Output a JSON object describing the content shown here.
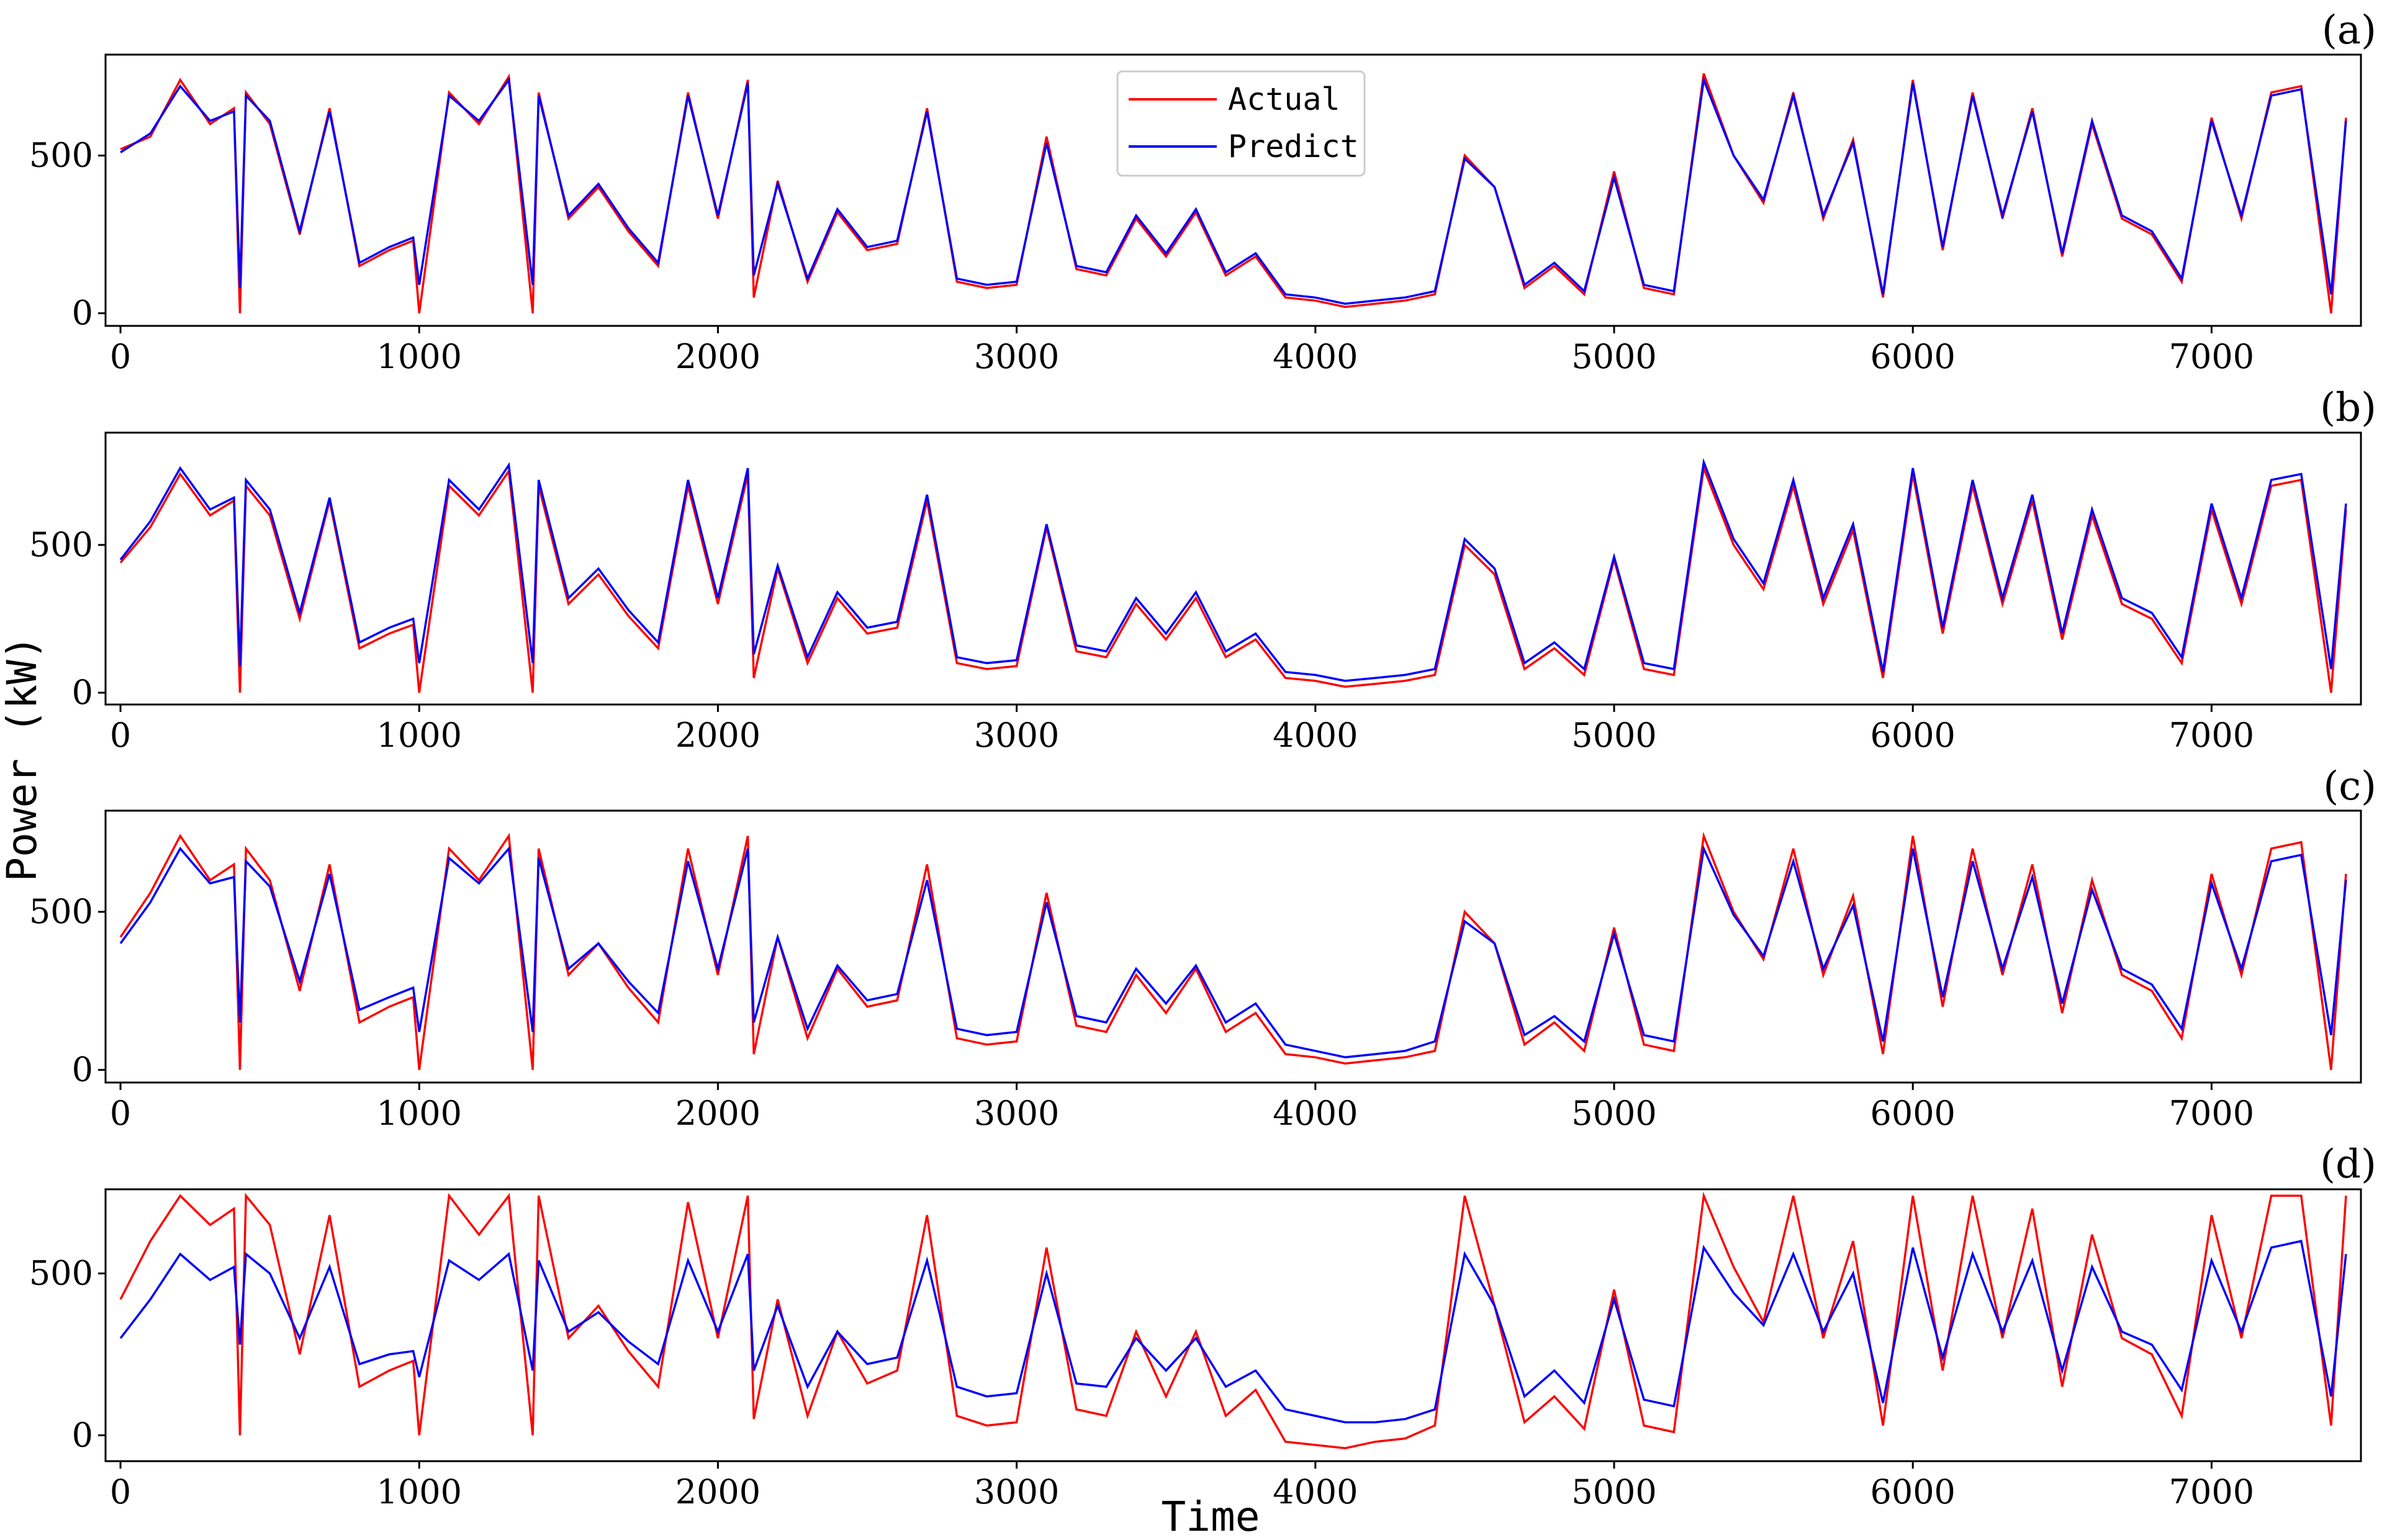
{
  "figure": {
    "ylabel": "Power (kW)",
    "xlabel": "Time",
    "legend": {
      "placement": "top-center",
      "entries": [
        "Actual",
        "Predict"
      ]
    }
  },
  "colors": {
    "actual": "#ff0000",
    "predict": "#0000ff",
    "axis": "#000000",
    "background": "#ffffff"
  },
  "chart_data": [
    {
      "type": "line",
      "panel_label": "(a)",
      "x": [
        0,
        100,
        200,
        300,
        380,
        400,
        420,
        500,
        600,
        700,
        800,
        900,
        980,
        1000,
        1100,
        1200,
        1300,
        1380,
        1400,
        1500,
        1600,
        1700,
        1800,
        1900,
        2000,
        2100,
        2120,
        2200,
        2300,
        2400,
        2500,
        2600,
        2700,
        2800,
        2900,
        3000,
        3100,
        3200,
        3300,
        3400,
        3500,
        3600,
        3700,
        3800,
        3900,
        4000,
        4100,
        4200,
        4300,
        4400,
        4500,
        4600,
        4700,
        4800,
        4900,
        5000,
        5100,
        5200,
        5300,
        5400,
        5500,
        5600,
        5700,
        5800,
        5900,
        6000,
        6100,
        6200,
        6300,
        6400,
        6500,
        6600,
        6700,
        6800,
        6900,
        7000,
        7100,
        7200,
        7300,
        7400,
        7450
      ],
      "xlim": [
        -50,
        7500
      ],
      "ylim": [
        -40,
        820
      ],
      "xticks": [
        0,
        1000,
        2000,
        3000,
        4000,
        5000,
        6000,
        7000
      ],
      "yticks": [
        0,
        500
      ],
      "series": [
        {
          "name": "Actual",
          "values": [
            520,
            560,
            740,
            600,
            650,
            0,
            700,
            600,
            250,
            650,
            150,
            200,
            230,
            0,
            700,
            600,
            750,
            0,
            700,
            300,
            400,
            260,
            150,
            700,
            300,
            740,
            50,
            420,
            100,
            320,
            200,
            220,
            650,
            100,
            80,
            90,
            560,
            140,
            120,
            300,
            180,
            320,
            120,
            180,
            50,
            40,
            20,
            30,
            40,
            60,
            500,
            400,
            80,
            150,
            60,
            450,
            80,
            60,
            760,
            500,
            350,
            700,
            300,
            550,
            50,
            740,
            200,
            700,
            300,
            650,
            180,
            600,
            300,
            250,
            100,
            620,
            300,
            700,
            720,
            0,
            620
          ]
        },
        {
          "name": "Predict",
          "values": [
            510,
            570,
            720,
            610,
            640,
            80,
            690,
            610,
            260,
            640,
            160,
            210,
            240,
            90,
            690,
            610,
            740,
            90,
            690,
            310,
            410,
            270,
            160,
            690,
            310,
            730,
            120,
            410,
            110,
            330,
            210,
            230,
            640,
            110,
            90,
            100,
            540,
            150,
            130,
            310,
            190,
            330,
            130,
            190,
            60,
            50,
            30,
            40,
            50,
            70,
            490,
            400,
            90,
            160,
            70,
            430,
            90,
            70,
            740,
            500,
            360,
            690,
            310,
            540,
            60,
            730,
            210,
            690,
            310,
            640,
            190,
            610,
            310,
            260,
            110,
            610,
            310,
            690,
            710,
            60,
            610
          ]
        }
      ]
    },
    {
      "type": "line",
      "panel_label": "(b)",
      "x": [
        0,
        100,
        200,
        300,
        380,
        400,
        420,
        500,
        600,
        700,
        800,
        900,
        980,
        1000,
        1100,
        1200,
        1300,
        1380,
        1400,
        1500,
        1600,
        1700,
        1800,
        1900,
        2000,
        2100,
        2120,
        2200,
        2300,
        2400,
        2500,
        2600,
        2700,
        2800,
        2900,
        3000,
        3100,
        3200,
        3300,
        3400,
        3500,
        3600,
        3700,
        3800,
        3900,
        4000,
        4100,
        4200,
        4300,
        4400,
        4500,
        4600,
        4700,
        4800,
        4900,
        5000,
        5100,
        5200,
        5300,
        5400,
        5500,
        5600,
        5700,
        5800,
        5900,
        6000,
        6100,
        6200,
        6300,
        6400,
        6500,
        6600,
        6700,
        6800,
        6900,
        7000,
        7100,
        7200,
        7300,
        7400,
        7450
      ],
      "xlim": [
        -50,
        7500
      ],
      "ylim": [
        -40,
        880
      ],
      "xticks": [
        0,
        1000,
        2000,
        3000,
        4000,
        5000,
        6000,
        7000
      ],
      "yticks": [
        0,
        500
      ],
      "series": [
        {
          "name": "Actual",
          "values": [
            440,
            560,
            740,
            600,
            650,
            0,
            700,
            600,
            250,
            650,
            150,
            200,
            230,
            0,
            700,
            600,
            750,
            0,
            700,
            300,
            400,
            260,
            150,
            700,
            300,
            740,
            50,
            420,
            100,
            320,
            200,
            220,
            650,
            100,
            80,
            90,
            560,
            140,
            120,
            300,
            180,
            320,
            120,
            180,
            50,
            40,
            20,
            30,
            40,
            60,
            500,
            400,
            80,
            150,
            60,
            450,
            80,
            60,
            760,
            500,
            350,
            700,
            300,
            550,
            50,
            740,
            200,
            700,
            300,
            650,
            180,
            600,
            300,
            250,
            100,
            620,
            300,
            700,
            720,
            0,
            620
          ]
        },
        {
          "name": "Predict",
          "values": [
            450,
            580,
            760,
            620,
            660,
            90,
            720,
            620,
            270,
            660,
            170,
            220,
            250,
            100,
            720,
            620,
            770,
            100,
            720,
            320,
            420,
            280,
            170,
            720,
            320,
            760,
            130,
            430,
            120,
            340,
            220,
            240,
            670,
            120,
            100,
            110,
            570,
            160,
            140,
            320,
            200,
            340,
            140,
            200,
            70,
            60,
            40,
            50,
            60,
            80,
            520,
            420,
            100,
            170,
            80,
            460,
            100,
            80,
            780,
            520,
            370,
            720,
            320,
            570,
            70,
            760,
            220,
            720,
            320,
            670,
            200,
            620,
            320,
            270,
            120,
            640,
            320,
            720,
            740,
            80,
            640
          ]
        }
      ]
    },
    {
      "type": "line",
      "panel_label": "(c)",
      "x": [
        0,
        100,
        200,
        300,
        380,
        400,
        420,
        500,
        600,
        700,
        800,
        900,
        980,
        1000,
        1100,
        1200,
        1300,
        1380,
        1400,
        1500,
        1600,
        1700,
        1800,
        1900,
        2000,
        2100,
        2120,
        2200,
        2300,
        2400,
        2500,
        2600,
        2700,
        2800,
        2900,
        3000,
        3100,
        3200,
        3300,
        3400,
        3500,
        3600,
        3700,
        3800,
        3900,
        4000,
        4100,
        4200,
        4300,
        4400,
        4500,
        4600,
        4700,
        4800,
        4900,
        5000,
        5100,
        5200,
        5300,
        5400,
        5500,
        5600,
        5700,
        5800,
        5900,
        6000,
        6100,
        6200,
        6300,
        6400,
        6500,
        6600,
        6700,
        6800,
        6900,
        7000,
        7100,
        7200,
        7300,
        7400,
        7450
      ],
      "xlim": [
        -50,
        7500
      ],
      "ylim": [
        -40,
        820
      ],
      "xticks": [
        0,
        1000,
        2000,
        3000,
        4000,
        5000,
        6000,
        7000
      ],
      "yticks": [
        0,
        500
      ],
      "series": [
        {
          "name": "Actual",
          "values": [
            420,
            560,
            740,
            600,
            650,
            0,
            700,
            600,
            250,
            650,
            150,
            200,
            230,
            0,
            700,
            600,
            740,
            0,
            700,
            300,
            400,
            260,
            150,
            700,
            300,
            740,
            50,
            420,
            100,
            320,
            200,
            220,
            650,
            100,
            80,
            90,
            560,
            140,
            120,
            300,
            180,
            320,
            120,
            180,
            50,
            40,
            20,
            30,
            40,
            60,
            500,
            400,
            80,
            150,
            60,
            450,
            80,
            60,
            740,
            500,
            350,
            700,
            300,
            550,
            50,
            740,
            200,
            700,
            300,
            650,
            180,
            600,
            300,
            250,
            100,
            620,
            300,
            700,
            720,
            0,
            620
          ]
        },
        {
          "name": "Predict",
          "values": [
            400,
            530,
            700,
            590,
            610,
            150,
            660,
            580,
            280,
            620,
            190,
            230,
            260,
            120,
            670,
            590,
            700,
            120,
            670,
            320,
            400,
            280,
            180,
            660,
            320,
            700,
            150,
            420,
            130,
            330,
            220,
            240,
            600,
            130,
            110,
            120,
            530,
            170,
            150,
            320,
            210,
            330,
            150,
            210,
            80,
            60,
            40,
            50,
            60,
            90,
            470,
            400,
            110,
            170,
            90,
            430,
            110,
            90,
            700,
            490,
            360,
            660,
            320,
            520,
            90,
            700,
            230,
            660,
            320,
            610,
            210,
            570,
            320,
            270,
            130,
            590,
            320,
            660,
            680,
            110,
            600
          ]
        }
      ]
    },
    {
      "type": "line",
      "panel_label": "(d)",
      "x": [
        0,
        100,
        200,
        300,
        380,
        400,
        420,
        500,
        600,
        700,
        800,
        900,
        980,
        1000,
        1100,
        1200,
        1300,
        1380,
        1400,
        1500,
        1600,
        1700,
        1800,
        1900,
        2000,
        2100,
        2120,
        2200,
        2300,
        2400,
        2500,
        2600,
        2700,
        2800,
        2900,
        3000,
        3100,
        3200,
        3300,
        3400,
        3500,
        3600,
        3700,
        3800,
        3900,
        4000,
        4100,
        4200,
        4300,
        4400,
        4500,
        4600,
        4700,
        4800,
        4900,
        5000,
        5100,
        5200,
        5300,
        5400,
        5500,
        5600,
        5700,
        5800,
        5900,
        6000,
        6100,
        6200,
        6300,
        6400,
        6500,
        6600,
        6700,
        6800,
        6900,
        7000,
        7100,
        7200,
        7300,
        7400,
        7450
      ],
      "xlim": [
        -50,
        7500
      ],
      "ylim": [
        -80,
        760
      ],
      "xticks": [
        0,
        1000,
        2000,
        3000,
        4000,
        5000,
        6000,
        7000
      ],
      "yticks": [
        0,
        500
      ],
      "series": [
        {
          "name": "Actual",
          "values": [
            420,
            600,
            740,
            650,
            700,
            0,
            740,
            650,
            250,
            680,
            150,
            200,
            230,
            0,
            740,
            620,
            740,
            0,
            740,
            300,
            400,
            260,
            150,
            720,
            300,
            740,
            50,
            420,
            60,
            320,
            160,
            200,
            680,
            60,
            30,
            40,
            580,
            80,
            60,
            320,
            120,
            320,
            60,
            140,
            -20,
            -30,
            -40,
            -20,
            -10,
            30,
            740,
            400,
            40,
            120,
            20,
            450,
            30,
            10,
            740,
            520,
            350,
            740,
            300,
            600,
            30,
            740,
            200,
            740,
            300,
            700,
            150,
            620,
            300,
            250,
            60,
            680,
            300,
            740,
            740,
            30,
            740
          ]
        },
        {
          "name": "Predict",
          "values": [
            300,
            420,
            560,
            480,
            520,
            280,
            560,
            500,
            300,
            520,
            220,
            250,
            260,
            180,
            540,
            480,
            560,
            200,
            540,
            320,
            380,
            290,
            220,
            540,
            320,
            560,
            200,
            400,
            150,
            320,
            220,
            240,
            540,
            150,
            120,
            130,
            500,
            160,
            150,
            300,
            200,
            300,
            150,
            200,
            80,
            60,
            40,
            40,
            50,
            80,
            560,
            400,
            120,
            200,
            100,
            420,
            110,
            90,
            580,
            440,
            340,
            560,
            320,
            500,
            100,
            580,
            240,
            560,
            320,
            540,
            200,
            520,
            320,
            280,
            140,
            540,
            320,
            580,
            600,
            120,
            560
          ]
        }
      ]
    }
  ]
}
